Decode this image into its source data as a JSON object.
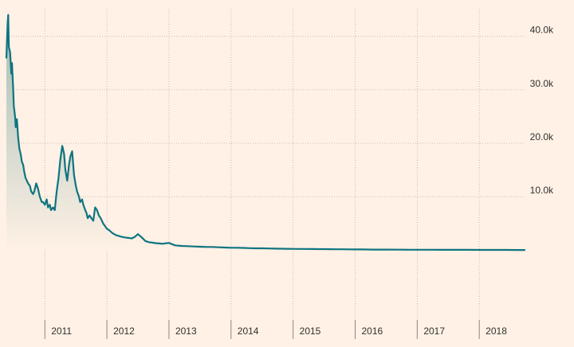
{
  "chart_data": {
    "type": "area",
    "title": "",
    "xlabel": "",
    "ylabel": "",
    "y_axis_position": "right",
    "grid": true,
    "xlim": [
      2010.38,
      2018.73
    ],
    "ylim": [
      -12000,
      45000
    ],
    "y_ticks": [
      {
        "value": 10000,
        "label": "10.0k"
      },
      {
        "value": 20000,
        "label": "20.0k"
      },
      {
        "value": 30000,
        "label": "30.0k"
      },
      {
        "value": 40000,
        "label": "40.0k"
      }
    ],
    "x_ticks": [
      {
        "value": 2011,
        "label": "2011"
      },
      {
        "value": 2012,
        "label": "2012"
      },
      {
        "value": 2013,
        "label": "2013"
      },
      {
        "value": 2014,
        "label": "2014"
      },
      {
        "value": 2015,
        "label": "2015"
      },
      {
        "value": 2016,
        "label": "2016"
      },
      {
        "value": 2017,
        "label": "2017"
      },
      {
        "value": 2018,
        "label": "2018"
      }
    ],
    "colors": {
      "line": "#0f7480",
      "fill_top": "#8fb3ab",
      "fill_bottom": "#fff1e5"
    },
    "series": [
      {
        "x": [
          2010.38,
          2010.4,
          2010.41,
          2010.42,
          2010.44,
          2010.46,
          2010.47,
          2010.49,
          2010.5,
          2010.52,
          2010.53,
          2010.55,
          2010.57,
          2010.59,
          2010.61,
          2010.63,
          2010.65,
          2010.67,
          2010.69,
          2010.71,
          2010.73,
          2010.76,
          2010.78,
          2010.81,
          2010.83,
          2010.86,
          2010.89,
          2010.92,
          2010.95,
          2010.97,
          2011.0,
          2011.03,
          2011.05,
          2011.08,
          2011.1,
          2011.13,
          2011.16,
          2011.19,
          2011.22,
          2011.25,
          2011.28,
          2011.31,
          2011.33,
          2011.36,
          2011.39,
          2011.41,
          2011.44,
          2011.47,
          2011.5,
          2011.52,
          2011.55,
          2011.57,
          2011.6,
          2011.62,
          2011.65,
          2011.67,
          2011.69,
          2011.72,
          2011.75,
          2011.78,
          2011.81,
          2011.84,
          2011.87,
          2011.9,
          2011.94,
          2011.97,
          2012.0,
          2012.03,
          2012.06,
          2012.09,
          2012.12,
          2012.15,
          2012.18,
          2012.21,
          2012.24,
          2012.28,
          2012.31,
          2012.35,
          2012.4,
          2012.45,
          2012.5,
          2012.56,
          2012.62,
          2012.68,
          2012.74,
          2012.8,
          2012.86,
          2012.9,
          2012.95,
          2013.0,
          2013.1,
          2013.2,
          2013.3,
          2013.4,
          2013.5,
          2013.6,
          2013.7,
          2013.8,
          2013.9,
          2014.0,
          2014.1,
          2014.2,
          2014.3,
          2014.4,
          2014.5,
          2014.6,
          2014.7,
          2014.8,
          2014.9,
          2015.0,
          2015.1,
          2015.2,
          2015.3,
          2015.4,
          2015.5,
          2015.6,
          2015.7,
          2015.8,
          2015.9,
          2016.0,
          2016.1,
          2016.2,
          2016.3,
          2016.5,
          2016.7,
          2016.9,
          2017.0,
          2017.2,
          2017.4,
          2017.6,
          2017.8,
          2018.0,
          2018.2,
          2018.4,
          2018.6,
          2018.73
        ],
        "y": [
          36000,
          42500,
          44000,
          38000,
          37000,
          33000,
          35000,
          30000,
          27000,
          25000,
          23000,
          24500,
          21000,
          19000,
          18000,
          16500,
          16000,
          14500,
          13500,
          13000,
          12500,
          12000,
          11000,
          10500,
          11000,
          12500,
          11500,
          10000,
          9000,
          9000,
          8500,
          9500,
          8000,
          8500,
          7500,
          8000,
          7500,
          11000,
          13500,
          17000,
          19500,
          18000,
          15000,
          13000,
          16000,
          17500,
          18500,
          14000,
          12000,
          11000,
          10000,
          9000,
          9500,
          8500,
          7500,
          7000,
          6000,
          6500,
          6000,
          5500,
          8000,
          7500,
          6500,
          6000,
          5000,
          4500,
          4000,
          3800,
          3500,
          3200,
          3000,
          2800,
          2700,
          2600,
          2500,
          2400,
          2350,
          2300,
          2200,
          2500,
          3000,
          2400,
          1700,
          1500,
          1400,
          1300,
          1250,
          1200,
          1300,
          1350,
          900,
          800,
          750,
          700,
          650,
          600,
          600,
          550,
          500,
          450,
          450,
          420,
          380,
          350,
          350,
          330,
          300,
          280,
          270,
          250,
          240,
          230,
          220,
          210,
          200,
          190,
          180,
          170,
          160,
          150,
          140,
          130,
          120,
          110,
          100,
          90,
          85,
          80,
          75,
          70,
          65,
          60,
          55,
          50,
          45,
          40
        ]
      }
    ]
  }
}
